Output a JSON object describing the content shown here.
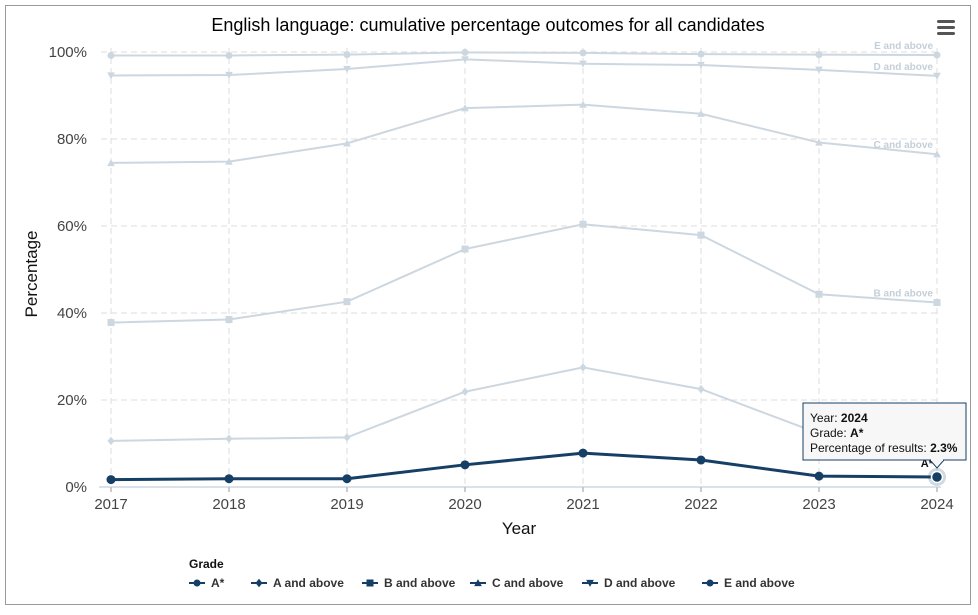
{
  "menu_icon": "hamburger-menu-icon",
  "chart_data": {
    "type": "line",
    "title": "English language: cumulative percentage outcomes for all candidates",
    "xlabel": "Year",
    "ylabel": "Percentage",
    "x": [
      "2017",
      "2018",
      "2019",
      "2020",
      "2021",
      "2022",
      "2023",
      "2024"
    ],
    "ylim": [
      0,
      100
    ],
    "y_ticks": [
      "0%",
      "20%",
      "40%",
      "60%",
      "80%",
      "100%"
    ],
    "grid": true,
    "legend_title": "Grade",
    "legend_position": "bottom",
    "series": [
      {
        "name": "A*",
        "marker": "circle",
        "values": [
          1.7,
          1.9,
          1.9,
          5.1,
          7.8,
          6.2,
          2.5,
          2.3
        ],
        "highlighted": true
      },
      {
        "name": "A and above",
        "marker": "diamond",
        "values": [
          10.6,
          11.1,
          11.4,
          21.9,
          27.5,
          22.5,
          12.3,
          11.2
        ],
        "end_label": "A and above"
      },
      {
        "name": "B and above",
        "marker": "square",
        "values": [
          37.8,
          38.5,
          42.6,
          54.7,
          60.4,
          57.9,
          44.3,
          42.4
        ],
        "end_label": "B and above"
      },
      {
        "name": "C and above",
        "marker": "triangle",
        "values": [
          74.5,
          74.8,
          79.0,
          87.1,
          87.9,
          85.8,
          79.2,
          76.5
        ],
        "end_label": "C and above"
      },
      {
        "name": "D and above",
        "marker": "triangle-down",
        "values": [
          94.6,
          94.7,
          96.1,
          98.3,
          97.3,
          97.0,
          95.9,
          94.5
        ],
        "end_label": "D and above"
      },
      {
        "name": "E and above",
        "marker": "circle",
        "values": [
          99.2,
          99.2,
          99.4,
          99.9,
          99.8,
          99.5,
          99.4,
          99.3
        ],
        "end_label": "E and above"
      }
    ],
    "highlight_point_label": "A*",
    "tooltip": {
      "year_label": "Year: ",
      "year_value": "2024",
      "grade_label": "Grade: ",
      "grade_value": "A*",
      "pct_label": "Percentage of results: ",
      "pct_value": "2.3%"
    }
  },
  "colors": {
    "highlight": "#163f66",
    "faded": "#cdd7e0",
    "grid": "#dedede"
  }
}
